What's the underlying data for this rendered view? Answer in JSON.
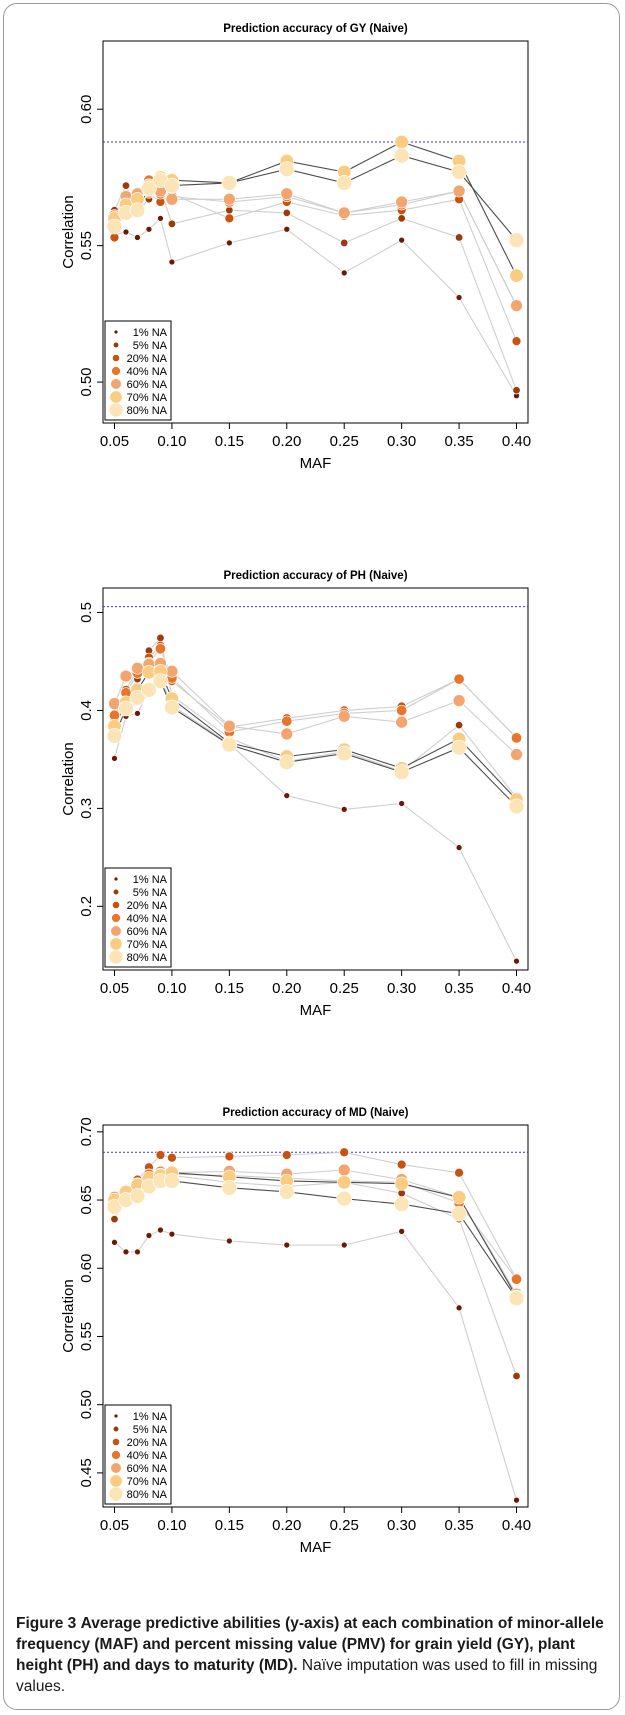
{
  "figure": {
    "caption_label": "Figure 3",
    "caption_bold": "Average predictive abilities (y-axis) at each combination of minor-allele frequency (MAF) and percent missing value (PMV) for grain yield (GY), plant height (PH) and days to maturity (MD).",
    "caption_rest": "Naïve imputation was used to fill in missing values."
  },
  "colors": {
    "1% NA": "#6b1a05",
    "5% NA": "#9c3a09",
    "20% NA": "#c9520e",
    "40% NA": "#e8762a",
    "60% NA": "#f2a56e",
    "70% NA": "#f9cc82",
    "80% NA": "#fbe5b7",
    "reference_line": "#3a35d8",
    "connector": "#cfcfcf",
    "connector_dark": "#4d4d4d"
  },
  "chart_data": [
    {
      "type": "line",
      "title": "Prediction accuracy of GY (Naive)",
      "xlabel": "MAF",
      "ylabel": "Correlation",
      "x": [
        0.05,
        0.06,
        0.07,
        0.08,
        0.09,
        0.1,
        0.15,
        0.2,
        0.25,
        0.3,
        0.35,
        0.4
      ],
      "xticks": [
        "0.05",
        "0.10",
        "0.15",
        "0.20",
        "0.25",
        "0.30",
        "0.35",
        "0.40"
      ],
      "xlim": [
        0.04,
        0.41
      ],
      "yticks": [
        "0.50",
        "0.55",
        "0.60"
      ],
      "ylim": [
        0.485,
        0.625
      ],
      "reference_line": 0.588,
      "legend_position": "bottom-left",
      "series": [
        {
          "name": "1% NA",
          "values": [
            0.554,
            0.555,
            0.553,
            0.556,
            0.56,
            0.544,
            0.551,
            0.556,
            0.54,
            0.552,
            0.531,
            0.495
          ]
        },
        {
          "name": "5% NA",
          "values": [
            0.563,
            0.572,
            0.563,
            0.567,
            0.571,
            0.558,
            0.563,
            0.562,
            0.551,
            0.56,
            0.553,
            0.497
          ]
        },
        {
          "name": "20% NA",
          "values": [
            0.553,
            0.565,
            0.566,
            0.569,
            0.566,
            0.569,
            0.56,
            0.566,
            0.561,
            0.563,
            0.567,
            0.515
          ]
        },
        {
          "name": "40% NA",
          "values": [
            0.558,
            0.566,
            0.566,
            0.574,
            0.569,
            0.568,
            0.566,
            0.568,
            0.562,
            0.565,
            0.57,
            0.528
          ]
        },
        {
          "name": "60% NA",
          "values": [
            0.561,
            0.568,
            0.569,
            0.57,
            0.57,
            0.567,
            0.567,
            0.569,
            0.562,
            0.566,
            0.57,
            0.528
          ]
        },
        {
          "name": "70% NA",
          "values": [
            0.56,
            0.565,
            0.567,
            0.572,
            0.575,
            0.574,
            0.573,
            0.581,
            0.577,
            0.588,
            0.581,
            0.539
          ]
        },
        {
          "name": "80% NA",
          "values": [
            0.557,
            0.562,
            0.563,
            0.571,
            0.574,
            0.572,
            0.573,
            0.578,
            0.573,
            0.583,
            0.577,
            0.552
          ]
        }
      ]
    },
    {
      "type": "line",
      "title": "Prediction accuracy of PH (Naive)",
      "xlabel": "MAF",
      "ylabel": "Correlation",
      "x": [
        0.05,
        0.06,
        0.07,
        0.08,
        0.09,
        0.1,
        0.15,
        0.2,
        0.25,
        0.3,
        0.35,
        0.4
      ],
      "xticks": [
        "0.05",
        "0.10",
        "0.15",
        "0.20",
        "0.25",
        "0.30",
        "0.35",
        "0.40"
      ],
      "xlim": [
        0.04,
        0.41
      ],
      "yticks": [
        "0.2",
        "0.3",
        "0.4",
        "0.5"
      ],
      "ylim": [
        0.135,
        0.525
      ],
      "reference_line": 0.506,
      "legend_position": "bottom-left",
      "series": [
        {
          "name": "1% NA",
          "values": [
            0.351,
            0.394,
            0.397,
            0.42,
            0.433,
            0.405,
            0.366,
            0.313,
            0.299,
            0.305,
            0.26,
            0.144
          ]
        },
        {
          "name": "5% NA",
          "values": [
            0.381,
            0.413,
            0.432,
            0.461,
            0.474,
            0.415,
            0.372,
            0.348,
            0.358,
            0.338,
            0.385,
            0.311
          ]
        },
        {
          "name": "20% NA",
          "values": [
            0.392,
            0.421,
            0.442,
            0.454,
            0.466,
            0.43,
            0.383,
            0.392,
            0.4,
            0.404,
            0.432,
            0.372
          ]
        },
        {
          "name": "40% NA",
          "values": [
            0.395,
            0.418,
            0.438,
            0.449,
            0.463,
            0.433,
            0.378,
            0.389,
            0.397,
            0.4,
            0.432,
            0.372
          ]
        },
        {
          "name": "60% NA",
          "values": [
            0.407,
            0.435,
            0.443,
            0.447,
            0.448,
            0.44,
            0.384,
            0.376,
            0.394,
            0.388,
            0.41,
            0.355
          ]
        },
        {
          "name": "70% NA",
          "values": [
            0.384,
            0.408,
            0.421,
            0.439,
            0.44,
            0.412,
            0.367,
            0.353,
            0.36,
            0.341,
            0.371,
            0.309
          ]
        },
        {
          "name": "80% NA",
          "values": [
            0.374,
            0.402,
            0.413,
            0.421,
            0.43,
            0.403,
            0.365,
            0.347,
            0.356,
            0.337,
            0.362,
            0.302
          ]
        }
      ]
    },
    {
      "type": "line",
      "title": "Prediction accuracy of MD (Naive)",
      "xlabel": "MAF",
      "ylabel": "Correlation",
      "x": [
        0.05,
        0.06,
        0.07,
        0.08,
        0.09,
        0.1,
        0.15,
        0.2,
        0.25,
        0.3,
        0.35,
        0.4
      ],
      "xticks": [
        "0.05",
        "0.10",
        "0.15",
        "0.20",
        "0.25",
        "0.30",
        "0.35",
        "0.40"
      ],
      "xlim": [
        0.04,
        0.41
      ],
      "yticks": [
        "0.45",
        "0.50",
        "0.55",
        "0.60",
        "0.65",
        "0.70"
      ],
      "ylim": [
        0.425,
        0.705
      ],
      "reference_line": 0.685,
      "legend_position": "bottom-left",
      "series": [
        {
          "name": "1% NA",
          "values": [
            0.619,
            0.612,
            0.612,
            0.624,
            0.628,
            0.625,
            0.62,
            0.617,
            0.617,
            0.627,
            0.571,
            0.43
          ]
        },
        {
          "name": "5% NA",
          "values": [
            0.636,
            0.652,
            0.656,
            0.662,
            0.663,
            0.668,
            0.663,
            0.66,
            0.663,
            0.655,
            0.636,
            0.521
          ]
        },
        {
          "name": "20% NA",
          "values": [
            0.645,
            0.657,
            0.665,
            0.674,
            0.683,
            0.681,
            0.682,
            0.683,
            0.685,
            0.676,
            0.67,
            0.592
          ]
        },
        {
          "name": "40% NA",
          "values": [
            0.65,
            0.658,
            0.66,
            0.669,
            0.671,
            0.669,
            0.668,
            0.666,
            0.664,
            0.663,
            0.648,
            0.592
          ]
        },
        {
          "name": "60% NA",
          "values": [
            0.652,
            0.657,
            0.662,
            0.665,
            0.669,
            0.67,
            0.671,
            0.669,
            0.672,
            0.665,
            0.652,
            0.581
          ]
        },
        {
          "name": "70% NA",
          "values": [
            0.65,
            0.656,
            0.661,
            0.666,
            0.668,
            0.67,
            0.667,
            0.664,
            0.663,
            0.662,
            0.652,
            0.579
          ]
        },
        {
          "name": "80% NA",
          "values": [
            0.645,
            0.65,
            0.653,
            0.66,
            0.664,
            0.664,
            0.659,
            0.656,
            0.651,
            0.647,
            0.64,
            0.578
          ]
        }
      ]
    }
  ]
}
